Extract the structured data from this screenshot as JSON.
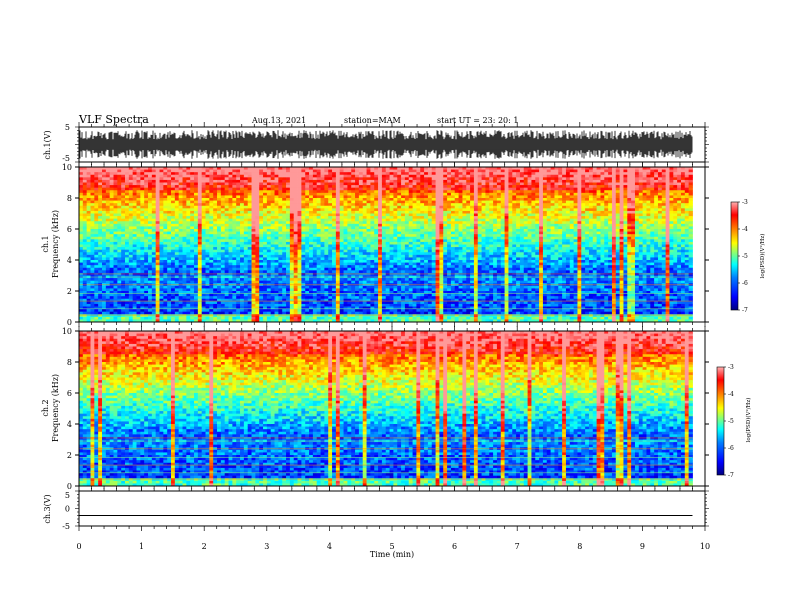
{
  "header": {
    "title": "VLF Spectra",
    "date": "Aug.13, 2021",
    "station": "station=MAM",
    "start": "start  UT  =   23: 20: 1"
  },
  "colors": {
    "colormap": [
      "#00007f",
      "#0000ff",
      "#007fff",
      "#00ffff",
      "#7fff7f",
      "#ffff00",
      "#ff7f00",
      "#ff0000",
      "#ff9999"
    ]
  },
  "chart_data": [
    {
      "type": "line",
      "panel": "ch1-waveform",
      "ylabel": "ch.1(V)",
      "ylim": [
        -5,
        5
      ],
      "yticks": [
        "5",
        "-5"
      ],
      "xlim": [
        0,
        10
      ],
      "note_values": "dense noise-like waveform spanning roughly -4 to 4 V over 0 to 9.8 min"
    },
    {
      "type": "heatmap",
      "panel": "ch1-spectrogram",
      "ylabel_line1": "ch.1",
      "ylabel_line2": "Frequency  (kHz)",
      "ylim": [
        0,
        10
      ],
      "yticks": [
        "0",
        "2",
        "4",
        "6",
        "8",
        "10"
      ],
      "xlim": [
        0,
        10
      ],
      "data_xmax": 9.8,
      "colorbar": {
        "label": "log(PSD)(V²/Hz)",
        "range": [
          -7,
          -3
        ],
        "ticks": [
          "-3",
          "-4",
          "-5",
          "-6",
          "-7"
        ]
      }
    },
    {
      "type": "heatmap",
      "panel": "ch2-spectrogram",
      "ylabel_line1": "ch.2",
      "ylabel_line2": "Frequency  (kHz)",
      "ylim": [
        0,
        10
      ],
      "yticks": [
        "0",
        "2",
        "4",
        "6",
        "8",
        "10"
      ],
      "xlim": [
        0,
        10
      ],
      "data_xmax": 9.8,
      "colorbar": {
        "label": "log(PSD)(V²/Hz)",
        "range": [
          -7,
          -3
        ],
        "ticks": [
          "-3",
          "-4",
          "-5",
          "-6",
          "-7"
        ]
      }
    },
    {
      "type": "line",
      "panel": "ch3-waveform",
      "ylabel": "ch.3(V)",
      "ylim": [
        -5,
        5
      ],
      "yticks": [
        "5",
        "0",
        "-5"
      ],
      "xlim": [
        0,
        10
      ],
      "x": [
        0,
        9.8
      ],
      "y": [
        -2,
        -2
      ]
    }
  ],
  "xaxis": {
    "label": "Time  (min)",
    "ticks": [
      "0",
      "1",
      "2",
      "3",
      "4",
      "5",
      "6",
      "7",
      "8",
      "9",
      "10"
    ]
  }
}
